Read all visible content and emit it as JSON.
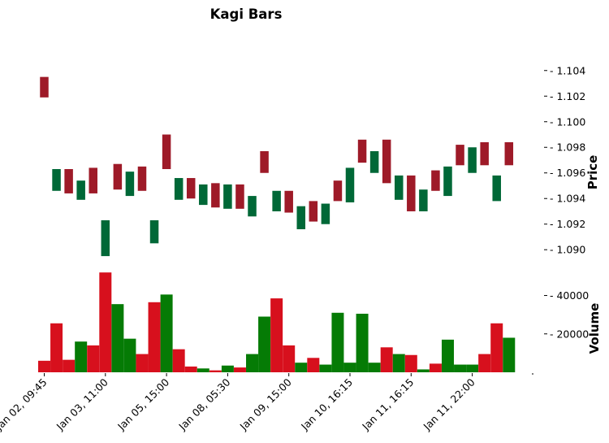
{
  "chart_data": {
    "type": "bar",
    "title": "Kagi Bars",
    "x_tick_labels": [
      "Jan 02, 09:45",
      "Jan 03, 11:00",
      "Jan 05, 15:00",
      "Jan 08, 05:30",
      "Jan 09, 15:00",
      "Jan 10, 16:15",
      "Jan 11, 16:15",
      "Jan 11, 22:00"
    ],
    "price_panel": {
      "ylabel": "Price",
      "ylim": [
        1.0876,
        1.1057
      ],
      "ytick_labels": [
        "1.090",
        "1.092",
        "1.094",
        "1.096",
        "1.098",
        "1.100",
        "1.102",
        "1.104"
      ],
      "series": [
        {
          "low": 1.1019,
          "high": 1.1035,
          "direction": "down"
        },
        {
          "low": 1.0946,
          "high": 1.0963,
          "direction": "up"
        },
        {
          "low": 1.0944,
          "high": 1.0963,
          "direction": "down"
        },
        {
          "low": 1.0939,
          "high": 1.0954,
          "direction": "up"
        },
        {
          "low": 1.0944,
          "high": 1.0964,
          "direction": "down"
        },
        {
          "low": 1.0895,
          "high": 1.0923,
          "direction": "up"
        },
        {
          "low": 1.0947,
          "high": 1.0967,
          "direction": "down"
        },
        {
          "low": 1.0942,
          "high": 1.0961,
          "direction": "up"
        },
        {
          "low": 1.0946,
          "high": 1.0965,
          "direction": "down"
        },
        {
          "low": 1.0905,
          "high": 1.0923,
          "direction": "up"
        },
        {
          "low": 1.0963,
          "high": 1.099,
          "direction": "down"
        },
        {
          "low": 1.0939,
          "high": 1.0956,
          "direction": "up"
        },
        {
          "low": 1.094,
          "high": 1.0956,
          "direction": "down"
        },
        {
          "low": 1.0935,
          "high": 1.0951,
          "direction": "up"
        },
        {
          "low": 1.0933,
          "high": 1.0952,
          "direction": "down"
        },
        {
          "low": 1.0932,
          "high": 1.0951,
          "direction": "up"
        },
        {
          "low": 1.0932,
          "high": 1.0951,
          "direction": "down"
        },
        {
          "low": 1.0926,
          "high": 1.0942,
          "direction": "up"
        },
        {
          "low": 1.096,
          "high": 1.0977,
          "direction": "down"
        },
        {
          "low": 1.093,
          "high": 1.0946,
          "direction": "up"
        },
        {
          "low": 1.0929,
          "high": 1.0946,
          "direction": "down"
        },
        {
          "low": 1.0916,
          "high": 1.0934,
          "direction": "up"
        },
        {
          "low": 1.0922,
          "high": 1.0938,
          "direction": "down"
        },
        {
          "low": 1.092,
          "high": 1.0936,
          "direction": "up"
        },
        {
          "low": 1.0938,
          "high": 1.0954,
          "direction": "down"
        },
        {
          "low": 1.0937,
          "high": 1.0964,
          "direction": "up"
        },
        {
          "low": 1.0968,
          "high": 1.0986,
          "direction": "down"
        },
        {
          "low": 1.096,
          "high": 1.0977,
          "direction": "up"
        },
        {
          "low": 1.0952,
          "high": 1.0986,
          "direction": "down"
        },
        {
          "low": 1.0939,
          "high": 1.0958,
          "direction": "up"
        },
        {
          "low": 1.093,
          "high": 1.0958,
          "direction": "down"
        },
        {
          "low": 1.093,
          "high": 1.0947,
          "direction": "up"
        },
        {
          "low": 1.0946,
          "high": 1.0962,
          "direction": "down"
        },
        {
          "low": 1.0942,
          "high": 1.0965,
          "direction": "up"
        },
        {
          "low": 1.0966,
          "high": 1.0982,
          "direction": "down"
        },
        {
          "low": 1.096,
          "high": 1.098,
          "direction": "up"
        },
        {
          "low": 1.0966,
          "high": 1.0984,
          "direction": "down"
        },
        {
          "low": 1.0938,
          "high": 1.0958,
          "direction": "up"
        },
        {
          "low": 1.0966,
          "high": 1.0984,
          "direction": "down"
        }
      ]
    },
    "volume_panel": {
      "ylabel": "Volume",
      "ylim": [
        0,
        47000
      ],
      "ytick_labels": [
        "20000",
        "40000"
      ],
      "values": [
        6000,
        25500,
        6500,
        16000,
        14000,
        52000,
        35500,
        17500,
        9500,
        36500,
        40500,
        12000,
        3000,
        2000,
        1000,
        3500,
        2500,
        9500,
        29000,
        38500,
        14000,
        5000,
        7500,
        4000,
        31000,
        5000,
        30500,
        5000,
        13000,
        9500,
        9000,
        1500,
        4500,
        17000,
        4000,
        4000,
        9500,
        25500,
        18000
      ],
      "colors": [
        "red",
        "red",
        "red",
        "green",
        "red",
        "red",
        "green",
        "green",
        "red",
        "red",
        "green",
        "red",
        "red",
        "green",
        "red",
        "green",
        "red",
        "green",
        "green",
        "red",
        "red",
        "green",
        "red",
        "green",
        "green",
        "green",
        "green",
        "green",
        "red",
        "green",
        "red",
        "green",
        "red",
        "green",
        "green",
        "green",
        "red",
        "red",
        "green"
      ]
    },
    "colors": {
      "price_up": "#006837",
      "price_down": "#9e1a28",
      "volume_up": "#057b05",
      "volume_down": "#d7101d"
    }
  }
}
